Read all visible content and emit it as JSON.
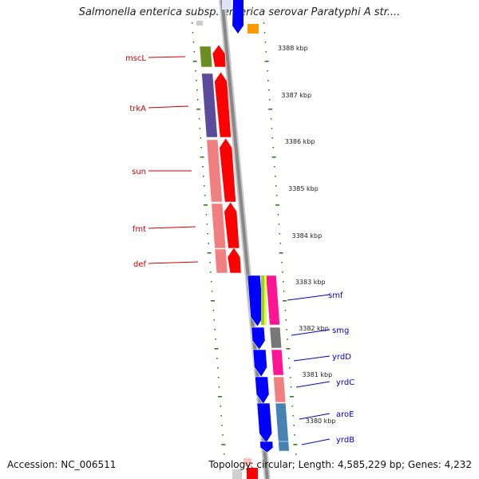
{
  "title": "Salmonella enterica subsp. enterica serovar Paratyphi A str....",
  "footer": {
    "accession": "Accession: NC_006511",
    "topology": "Topology: circular; Length: 4,585,229 bp; Genes: 4,232"
  },
  "colors": {
    "ruler_tick": "#2e7d1e",
    "forward_label": "#cc0000",
    "reverse_label": "#0000cc",
    "backbone": "#888888"
  },
  "kbp_ticks": [
    "3388 kbp",
    "3387 kbp",
    "3386 kbp",
    "3385 kbp",
    "3384 kbp",
    "3383 kbp",
    "3382 kbp",
    "3381 kbp",
    "3380 kbp"
  ],
  "left_genes": [
    {
      "name": "mscL",
      "color": "#6b8e23"
    },
    {
      "name": "trkA",
      "color": "#5b4b9a"
    },
    {
      "name": "sun",
      "color": "#f08080"
    },
    {
      "name": "fmt",
      "color": "#f08080"
    },
    {
      "name": "def",
      "color": "#f08080"
    }
  ],
  "right_genes": [
    {
      "name": "smf",
      "color": "#ff1493"
    },
    {
      "name": "smg",
      "color": "#777777"
    },
    {
      "name": "yrdD",
      "color": "#ff1493"
    },
    {
      "name": "yrdC",
      "color": "#f08080"
    },
    {
      "name": "aroE",
      "color": "#4682b4"
    },
    {
      "name": "yrdB",
      "color": "#4682b4"
    }
  ]
}
